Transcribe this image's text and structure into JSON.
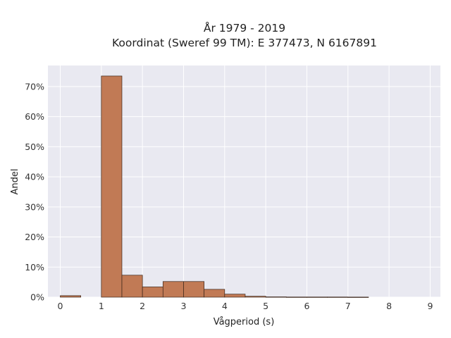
{
  "chart_data": {
    "type": "bar",
    "title_line1": "År 1979 - 2019",
    "title_line2": "Koordinat (Sweref 99 TM): E 377473, N 6167891",
    "xlabel": "Vågperiod (s)",
    "ylabel": "Andel",
    "xlim": [
      -0.3,
      9.25
    ],
    "ylim": [
      0,
      77
    ],
    "x_ticks": [
      0,
      1,
      2,
      3,
      4,
      5,
      6,
      7,
      8,
      9
    ],
    "x_tick_labels": [
      "0",
      "1",
      "2",
      "3",
      "4",
      "5",
      "6",
      "7",
      "8",
      "9"
    ],
    "y_ticks": [
      0,
      10,
      20,
      30,
      40,
      50,
      60,
      70
    ],
    "y_tick_labels": [
      "0%",
      "10%",
      "20%",
      "30%",
      "40%",
      "50%",
      "60%",
      "70%"
    ],
    "bin_width": 0.5,
    "bins": [
      {
        "x0": 0.0,
        "value": 0.5
      },
      {
        "x0": 0.5,
        "value": 0.0
      },
      {
        "x0": 1.0,
        "value": 73.5
      },
      {
        "x0": 1.5,
        "value": 7.3
      },
      {
        "x0": 2.0,
        "value": 3.4
      },
      {
        "x0": 2.5,
        "value": 5.2
      },
      {
        "x0": 3.0,
        "value": 5.2
      },
      {
        "x0": 3.5,
        "value": 2.6
      },
      {
        "x0": 4.0,
        "value": 1.0
      },
      {
        "x0": 4.5,
        "value": 0.3
      },
      {
        "x0": 5.0,
        "value": 0.1
      },
      {
        "x0": 5.5,
        "value": 0.05
      },
      {
        "x0": 6.0,
        "value": 0.05
      },
      {
        "x0": 6.5,
        "value": 0.05
      },
      {
        "x0": 7.0,
        "value": 0.03
      }
    ],
    "grid": true,
    "colors": {
      "bar_fill": "#c17a55",
      "bar_edge": "#3a2418",
      "plot_bg": "#e9e9f1",
      "grid": "#ffffff"
    }
  }
}
